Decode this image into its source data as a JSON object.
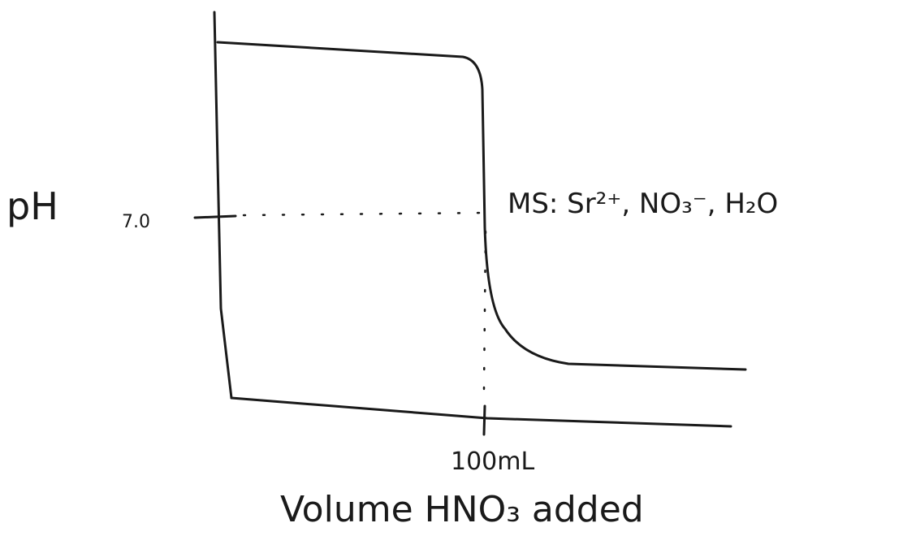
{
  "axes": {
    "y_label": "pH",
    "x_label": "Volume HNO₃ added",
    "y_tick": "7.0",
    "x_tick": "100mL"
  },
  "annotation": "MS: Sr²⁺, NO₃⁻, H₂O"
}
